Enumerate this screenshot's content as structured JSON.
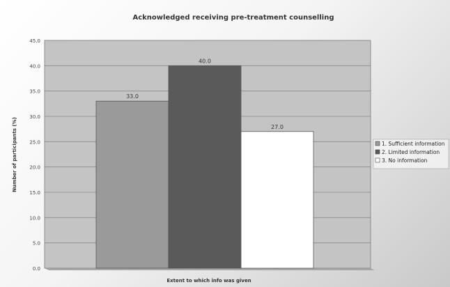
{
  "chart_data": {
    "type": "bar",
    "title": "Acknowledged receiving pre-treatment counselling",
    "xlabel": "Extent to which info was given",
    "ylabel": "Number of participants (%)",
    "ylim": [
      0,
      45
    ],
    "yticks": [
      "0.0",
      "5.0",
      "10.0",
      "15.0",
      "20.0",
      "25.0",
      "30.0",
      "35.0",
      "40.0",
      "45.0"
    ],
    "grid": true,
    "legend_position": "right",
    "series": [
      {
        "name": "1. Sufficient information",
        "value": 33,
        "label": "33.0",
        "color": "#9a9a9a"
      },
      {
        "name": "2. Limited information",
        "value": 40,
        "label": "40.0",
        "color": "#5a5a5a"
      },
      {
        "name": "3. No information",
        "value": 27,
        "label": "27.0",
        "color": "#ffffff"
      }
    ]
  }
}
